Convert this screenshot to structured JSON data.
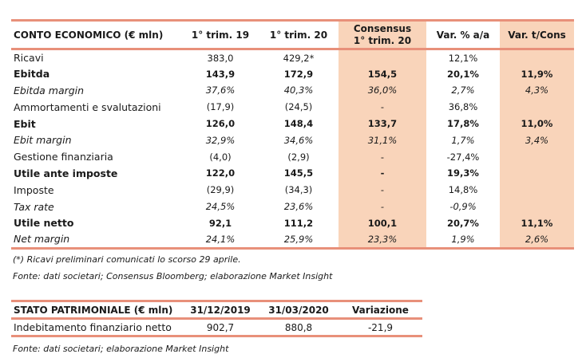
{
  "income": {
    "headers": [
      "CONTO ECONOMICO (€ mln)",
      "1° trim. 19",
      "1° trim. 20",
      "Consensus",
      "1° trim. 20",
      "Var. % a/a",
      "Var. t/Cons"
    ],
    "rows": [
      {
        "label": "Ricavi",
        "q19": "383,0",
        "q20": "429,2*",
        "cons": "",
        "yoy": "12,1%",
        "vcons": ""
      },
      {
        "label": "Ebitda",
        "q19": "143,9",
        "q20": "172,9",
        "cons": "154,5",
        "yoy": "20,1%",
        "vcons": "11,9%"
      },
      {
        "label": "Ebitda margin",
        "q19": "37,6%",
        "q20": "40,3%",
        "cons": "36,0%",
        "yoy": "2,7%",
        "vcons": "4,3%"
      },
      {
        "label": "Ammortamenti e svalutazioni",
        "q19": "(17,9)",
        "q20": "(24,5)",
        "cons": "-",
        "yoy": "36,8%",
        "vcons": ""
      },
      {
        "label": "Ebit",
        "q19": "126,0",
        "q20": "148,4",
        "cons": "133,7",
        "yoy": "17,8%",
        "vcons": "11,0%"
      },
      {
        "label": "Ebit margin",
        "q19": "32,9%",
        "q20": "34,6%",
        "cons": "31,1%",
        "yoy": "1,7%",
        "vcons": "3,4%"
      },
      {
        "label": "Gestione finanziaria",
        "q19": "(4,0)",
        "q20": "(2,9)",
        "cons": "-",
        "yoy": "-27,4%",
        "vcons": ""
      },
      {
        "label": "Utile ante imposte",
        "q19": "122,0",
        "q20": "145,5",
        "cons": "-",
        "yoy": "19,3%",
        "vcons": ""
      },
      {
        "label": "Imposte",
        "q19": "(29,9)",
        "q20": "(34,3)",
        "cons": "-",
        "yoy": "14,8%",
        "vcons": ""
      },
      {
        "label": "Tax rate",
        "q19": "24,5%",
        "q20": "23,6%",
        "cons": "-",
        "yoy": "-0,9%",
        "vcons": ""
      },
      {
        "label": "Utile netto",
        "q19": "92,1",
        "q20": "111,2",
        "cons": "100,1",
        "yoy": "20,7%",
        "vcons": "11,1%"
      },
      {
        "label": "Net margin",
        "q19": "24,1%",
        "q20": "25,9%",
        "cons": "23,3%",
        "yoy": "1,9%",
        "vcons": "2,6%"
      }
    ],
    "note1": "(*) Ricavi preliminari comunicati lo scorso 29 aprile.",
    "note2": "Fonte: dati societari; Consensus Bloomberg; elaborazione Market Insight"
  },
  "balance": {
    "headers": [
      "STATO PATRIMONIALE (€ mln)",
      "31/12/2019",
      "31/03/2020",
      "Variazione"
    ],
    "rows": [
      {
        "label": "Indebitamento finanziario netto",
        "d19": "902,7",
        "d20": "880,8",
        "var": "-21,9"
      }
    ],
    "note": "Fonte: dati societari; elaborazione Market Insight"
  }
}
